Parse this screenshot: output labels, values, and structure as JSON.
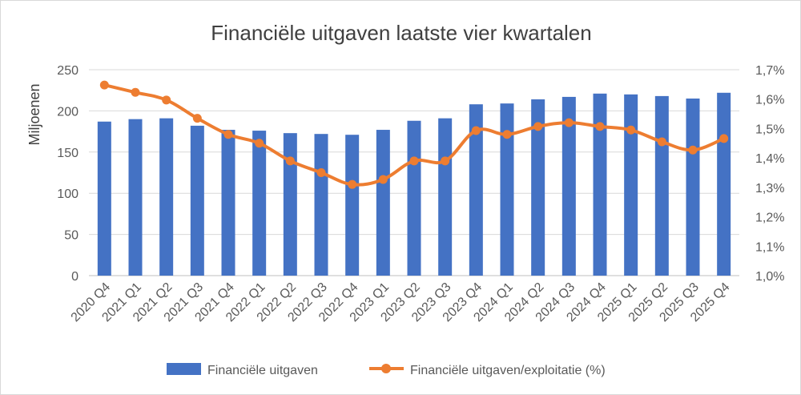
{
  "chart_data": {
    "type": "bar+line",
    "title": "Financiële uitgaven laatste vier kwartalen",
    "ylabel": "Miljoenen",
    "categories": [
      "2020 Q4",
      "2021 Q1",
      "2021 Q2",
      "2021 Q3",
      "2021 Q4",
      "2022 Q1",
      "2022 Q2",
      "2022 Q3",
      "2022 Q4",
      "2023 Q1",
      "2023 Q2",
      "2023 Q3",
      "2023 Q4",
      "2024 Q1",
      "2024 Q2",
      "2024 Q3",
      "2024 Q4",
      "2025 Q1",
      "2025 Q2",
      "2025 Q3",
      "2025 Q4"
    ],
    "ylim": [
      0,
      250
    ],
    "yticks": [
      "0",
      "50",
      "100",
      "150",
      "200",
      "250"
    ],
    "y2lim": [
      1.0,
      1.7
    ],
    "y2ticks": [
      "1,0%",
      "1,1%",
      "1,2%",
      "1,3%",
      "1,4%",
      "1,5%",
      "1,6%",
      "1,7%"
    ],
    "series": [
      {
        "name": "Financiële uitgaven",
        "type": "bar",
        "color": "#4472c4",
        "axis": "left",
        "values": [
          187,
          190,
          191,
          182,
          177,
          176,
          173,
          172,
          171,
          177,
          188,
          191,
          208,
          209,
          214,
          217,
          221,
          220,
          218,
          215,
          222
        ]
      },
      {
        "name": "Financiële uitgaven/exploitatie (%)",
        "type": "line",
        "color": "#ed7d31",
        "axis": "right",
        "values": [
          1.648,
          1.623,
          1.597,
          1.535,
          1.48,
          1.45,
          1.39,
          1.35,
          1.31,
          1.327,
          1.39,
          1.39,
          1.493,
          1.48,
          1.507,
          1.52,
          1.507,
          1.495,
          1.455,
          1.427,
          1.466
        ]
      }
    ],
    "grid": true,
    "legend_position": "bottom"
  }
}
